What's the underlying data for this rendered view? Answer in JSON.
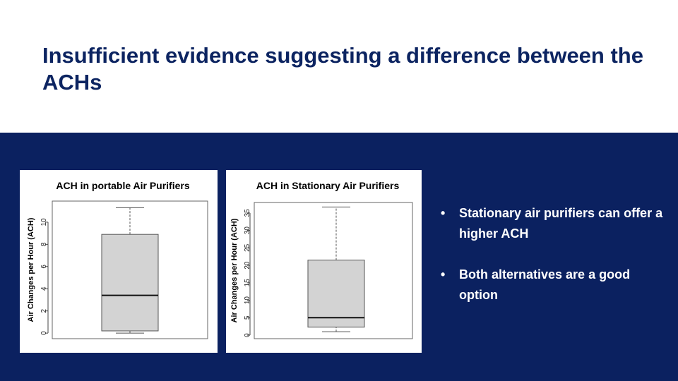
{
  "slide": {
    "title": "Insufficient evidence suggesting a difference between the ACHs",
    "bullets": [
      {
        "marker": "•",
        "text": "Stationary air purifiers can offer a higher ACH"
      },
      {
        "marker": "•",
        "text": "Both alternatives are a good option"
      }
    ]
  },
  "colors": {
    "title": "#0c2461",
    "band": "#0b2160",
    "box_fill": "#d3d3d3"
  },
  "chart_data": [
    {
      "type": "boxplot",
      "title": "ACH in portable Air Purifiers",
      "ylabel": "Air Changes per Hour (ACH)",
      "ylim": [
        -0.5,
        11.9
      ],
      "yticks": [
        0,
        2,
        4,
        6,
        8,
        10
      ],
      "box": {
        "min": 0.0,
        "q1": 0.2,
        "median": 3.4,
        "q3": 8.9,
        "max": 11.3
      }
    },
    {
      "type": "boxplot",
      "title": "ACH in Stationary Air Purifiers",
      "ylabel": "Air Changes per Hour (ACH)",
      "ylim": [
        -1.0,
        38.0
      ],
      "yticks": [
        0,
        5,
        10,
        15,
        20,
        25,
        30,
        35
      ],
      "box": {
        "min": 1.0,
        "q1": 2.3,
        "median": 5.0,
        "q3": 21.5,
        "max": 36.7
      }
    }
  ]
}
